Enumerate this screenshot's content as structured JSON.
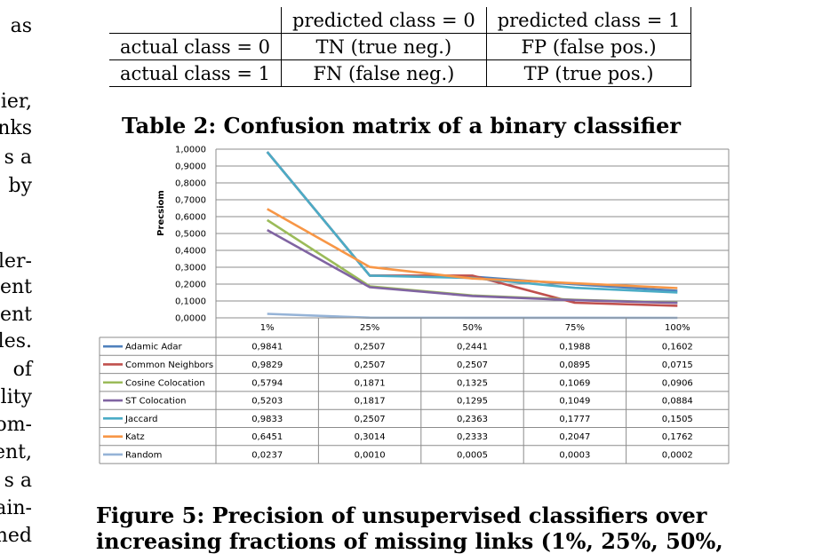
{
  "left_margin_text": [
    "as",
    "ier,",
    "nks",
    "s a",
    "by",
    "ler-",
    "ent",
    "ent",
    "les.",
    "of",
    "lity",
    "om-",
    "ent,",
    "s a",
    "ain-",
    "ned"
  ],
  "confusion_table": {
    "header": [
      "",
      "predicted class = 0",
      "predicted class = 1"
    ],
    "rows": [
      [
        "actual class = 0",
        "TN (true neg.)",
        "FP (false pos.)"
      ],
      [
        "actual class = 1",
        "FN (false neg.)",
        "TP (true pos.)"
      ]
    ]
  },
  "table_caption": "Table 2:  Confusion matrix of a binary classifier",
  "figure_caption": [
    "Figure 5:  Precision of unsupervised classifiers over",
    "increasing fractions of missing links (1%, 25%, 50%,"
  ],
  "chart_data": {
    "type": "line",
    "ylabel": "Precsiom",
    "ylim": [
      0,
      1
    ],
    "yticks": [
      "1,0000",
      "0,9000",
      "0,8000",
      "0,7000",
      "0,6000",
      "0,5000",
      "0,4000",
      "0,3000",
      "0,2000",
      "0,1000",
      "0,0000"
    ],
    "categories": [
      "1%",
      "25%",
      "50%",
      "75%",
      "100%"
    ],
    "grid": true,
    "legend": "data table below chart",
    "series": [
      {
        "name": "Adamic Adar",
        "color": "#4f81bd",
        "values": [
          0.9841,
          0.2507,
          0.2441,
          0.1988,
          0.1602
        ],
        "labels": [
          "0,9841",
          "0,2507",
          "0,2441",
          "0,1988",
          "0,1602"
        ]
      },
      {
        "name": "Common Neighbors",
        "color": "#c0504d",
        "values": [
          0.9829,
          0.2507,
          0.2507,
          0.0895,
          0.0715
        ],
        "labels": [
          "0,9829",
          "0,2507",
          "0,2507",
          "0,0895",
          "0,0715"
        ]
      },
      {
        "name": "Cosine Colocation",
        "color": "#9bbb59",
        "values": [
          0.5794,
          0.1871,
          0.1325,
          0.1069,
          0.0906
        ],
        "labels": [
          "0,5794",
          "0,1871",
          "0,1325",
          "0,1069",
          "0,0906"
        ]
      },
      {
        "name": "ST Colocation",
        "color": "#8064a2",
        "values": [
          0.5203,
          0.1817,
          0.1295,
          0.1049,
          0.0884
        ],
        "labels": [
          "0,5203",
          "0,1817",
          "0,1295",
          "0,1049",
          "0,0884"
        ]
      },
      {
        "name": "Jaccard",
        "color": "#4bacc6",
        "values": [
          0.9833,
          0.2507,
          0.2363,
          0.1777,
          0.1505
        ],
        "labels": [
          "0,9833",
          "0,2507",
          "0,2363",
          "0,1777",
          "0,1505"
        ]
      },
      {
        "name": "Katz",
        "color": "#f79646",
        "values": [
          0.6451,
          0.3014,
          0.2333,
          0.2047,
          0.1762
        ],
        "labels": [
          "0,6451",
          "0,3014",
          "0,2333",
          "0,2047",
          "0,1762"
        ]
      },
      {
        "name": "Random",
        "color": "#95b3d7",
        "values": [
          0.0237,
          0.001,
          0.0005,
          0.0003,
          0.0002
        ],
        "labels": [
          "0,0237",
          "0,0010",
          "0,0005",
          "0,0003",
          "0,0002"
        ]
      }
    ]
  }
}
